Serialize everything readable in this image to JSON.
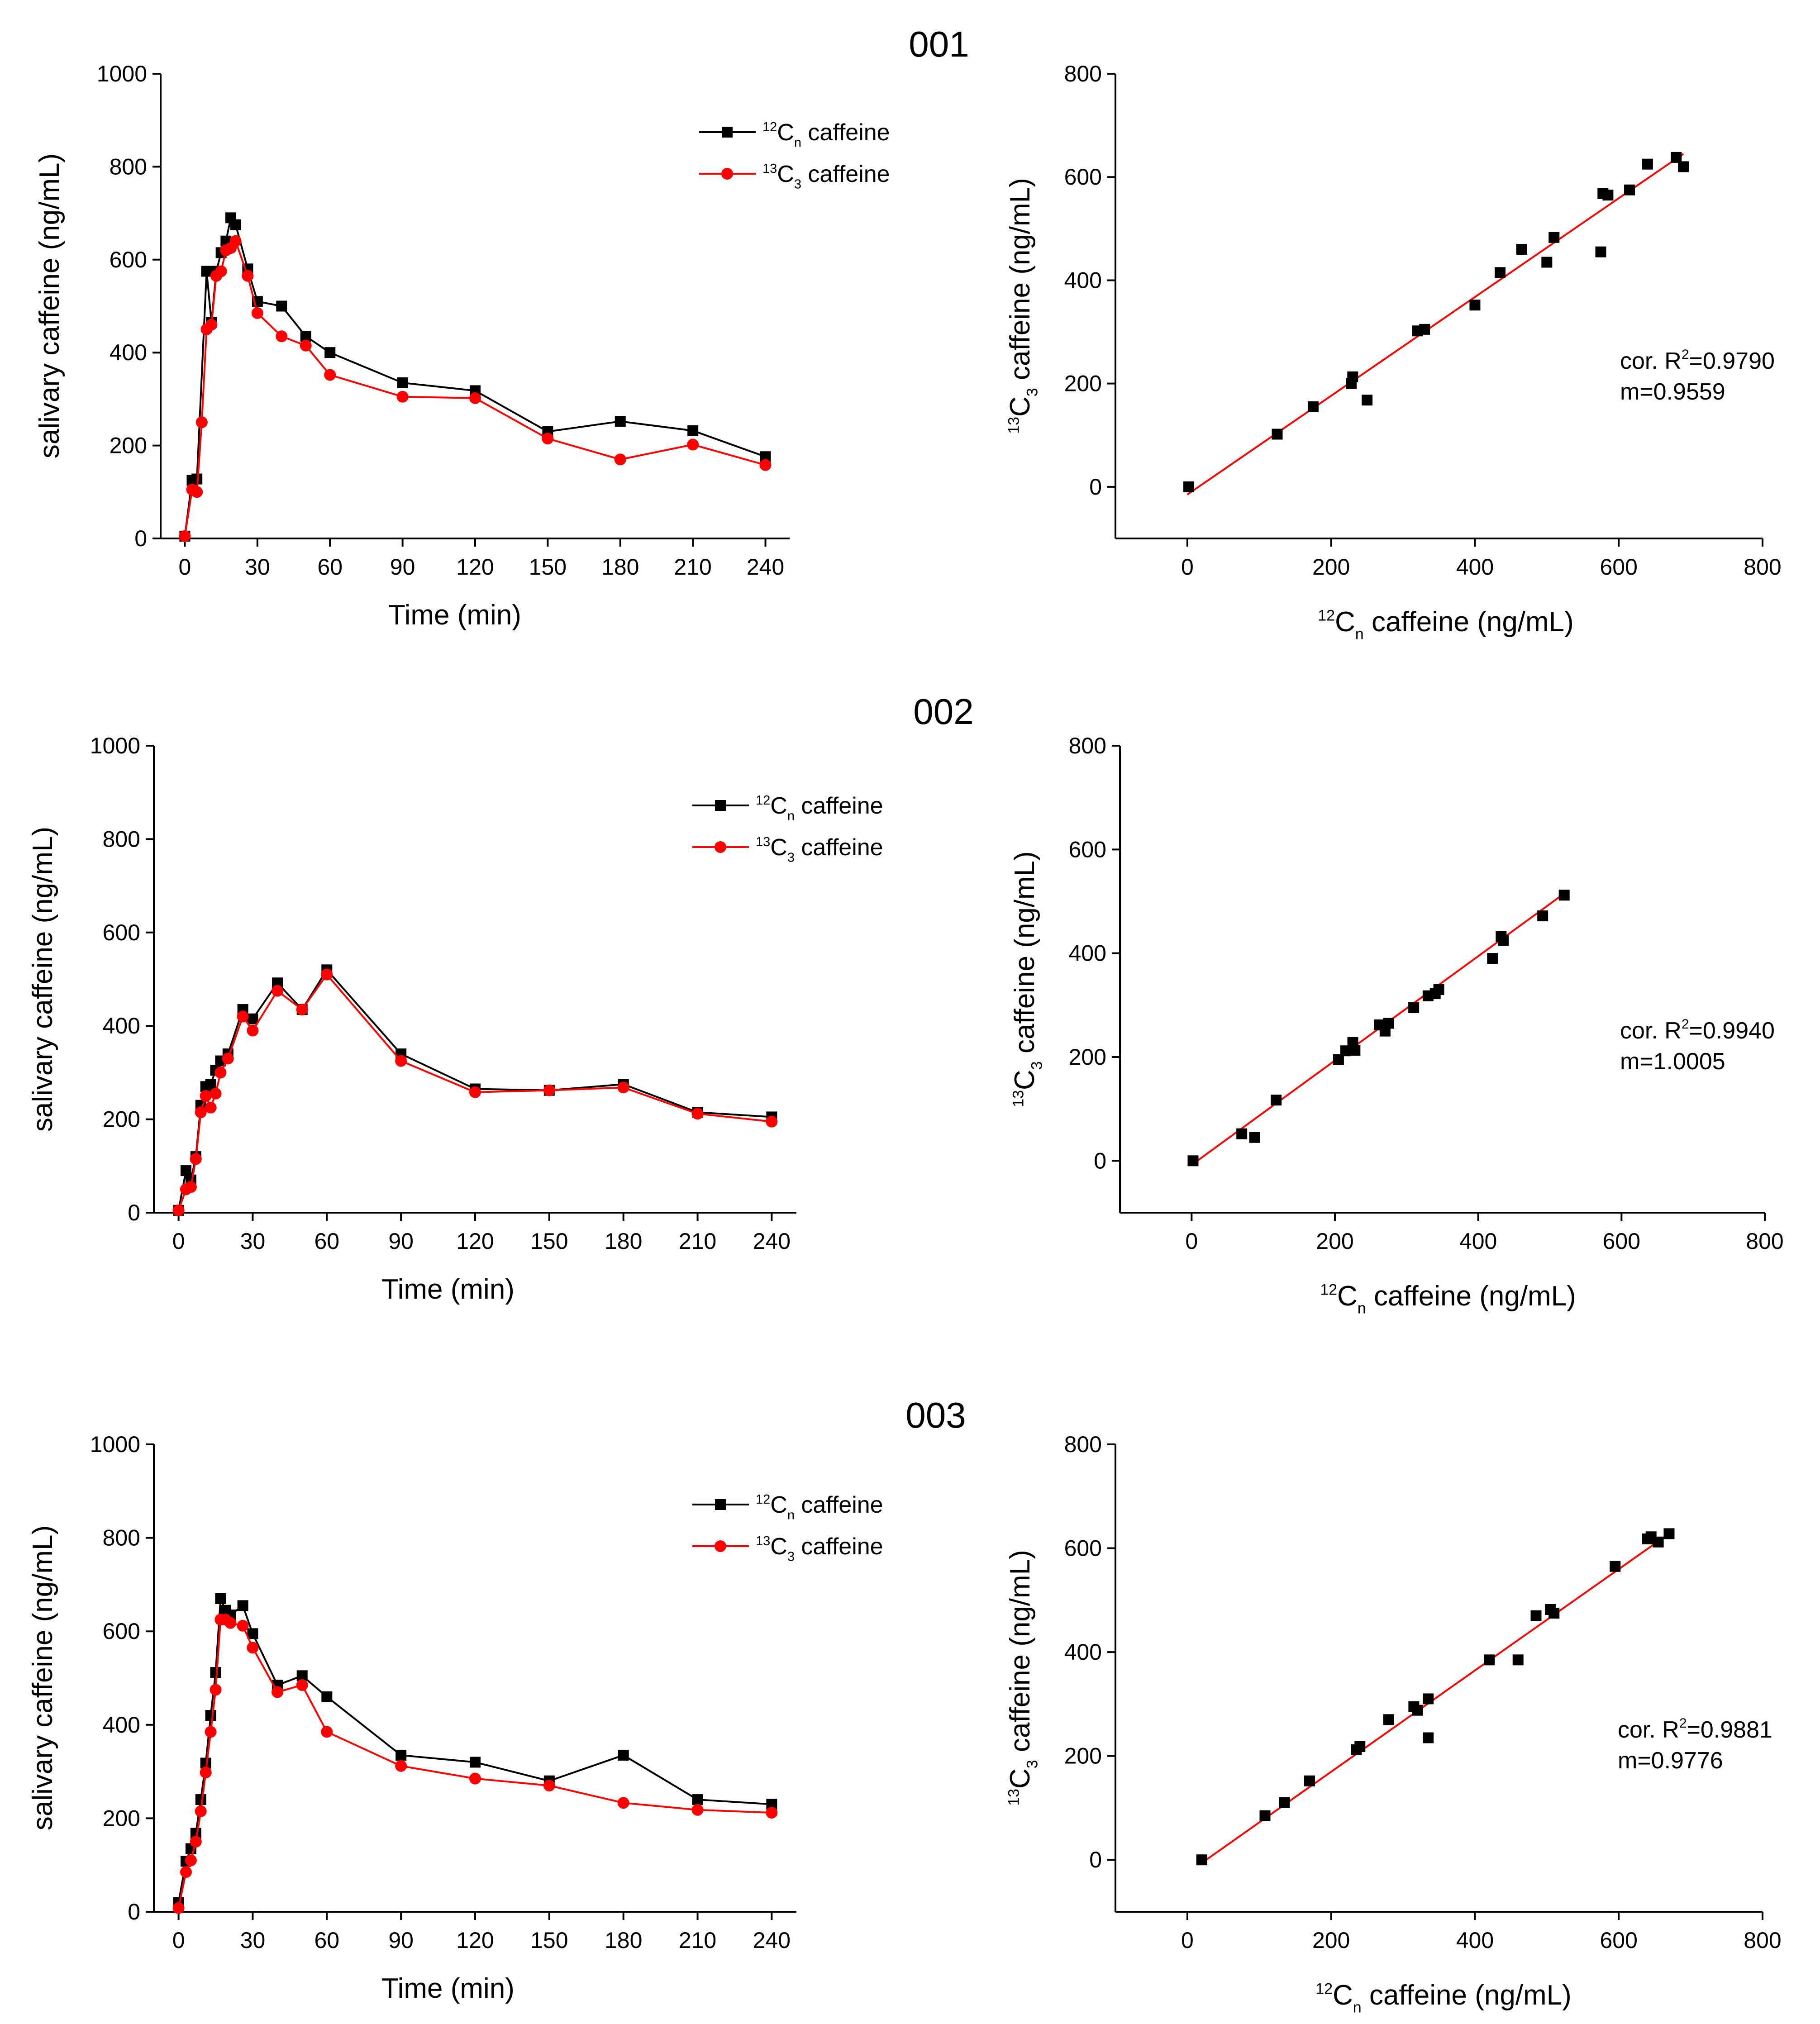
{
  "figure": {
    "panel_titles": [
      "001",
      "002",
      "003"
    ]
  },
  "legend": {
    "black_label": [
      "12",
      "C",
      "n",
      " caffeine"
    ],
    "red_label": [
      "13",
      "C",
      "3",
      " caffeine"
    ]
  },
  "colors": {
    "c12": "#000000",
    "c13": "#ff0000",
    "fit": "#ff0000"
  },
  "chart_data": [
    {
      "id": "001-time",
      "type": "line",
      "title": "001",
      "xlabel": "Time (min)",
      "ylabel": "salivary caffeine (ng/mL)",
      "xlim": [
        -10,
        250
      ],
      "ylim": [
        0,
        1000
      ],
      "xticks": [
        0,
        30,
        60,
        90,
        120,
        150,
        180,
        210,
        240
      ],
      "yticks": [
        0,
        200,
        400,
        600,
        800,
        1000
      ],
      "series": [
        {
          "name": "12Cn caffeine",
          "color": "#000000",
          "marker": "square",
          "x": [
            0,
            3,
            5,
            9,
            11,
            13,
            15,
            17,
            19,
            21,
            26,
            30,
            40,
            50,
            60,
            90,
            120,
            150,
            180,
            210,
            240
          ],
          "y": [
            5,
            125,
            128,
            575,
            465,
            575,
            615,
            640,
            690,
            675,
            580,
            510,
            500,
            435,
            400,
            335,
            318,
            230,
            252,
            232,
            176
          ]
        },
        {
          "name": "13C3 caffeine",
          "color": "#ff0000",
          "marker": "circle",
          "x": [
            0,
            3,
            5,
            7,
            9,
            11,
            13,
            15,
            17,
            19,
            21,
            26,
            30,
            40,
            50,
            60,
            90,
            120,
            150,
            180,
            210,
            240
          ],
          "y": [
            5,
            105,
            100,
            250,
            450,
            460,
            565,
            575,
            620,
            625,
            640,
            565,
            485,
            435,
            415,
            352,
            305,
            302,
            215,
            170,
            202,
            158
          ]
        }
      ]
    },
    {
      "id": "001-corr",
      "type": "scatter",
      "xlabel": [
        "12",
        "C",
        "n",
        " caffeine (ng/mL)"
      ],
      "ylabel": [
        "13",
        "C",
        "3",
        " caffeine (ng/mL)"
      ],
      "xlim": [
        -100,
        800
      ],
      "ylim": [
        -100,
        800
      ],
      "xticks": [
        0,
        200,
        400,
        600,
        800
      ],
      "yticks": [
        0,
        200,
        400,
        600,
        800
      ],
      "stats": {
        "r2_label": "cor. R",
        "r2_value": "=0.9790",
        "slope_label": "m=0.9559"
      },
      "fit": {
        "x": [
          0,
          690
        ],
        "y": [
          -15,
          645
        ]
      },
      "x": [
        2,
        125,
        175,
        228,
        230,
        250,
        320,
        330,
        400,
        435,
        465,
        500,
        510,
        575,
        578,
        585,
        615,
        640,
        680,
        690
      ],
      "y": [
        0,
        102,
        155,
        200,
        213,
        168,
        302,
        305,
        352,
        415,
        460,
        435,
        483,
        455,
        568,
        565,
        575,
        625,
        638,
        620
      ]
    },
    {
      "id": "002-time",
      "type": "line",
      "title": "002",
      "xlabel": "Time (min)",
      "ylabel": "salivary caffeine (ng/mL)",
      "xlim": [
        -10,
        250
      ],
      "ylim": [
        0,
        1000
      ],
      "xticks": [
        0,
        30,
        60,
        90,
        120,
        150,
        180,
        210,
        240
      ],
      "yticks": [
        0,
        200,
        400,
        600,
        800,
        1000
      ],
      "series": [
        {
          "name": "12Cn caffeine",
          "color": "#000000",
          "marker": "square",
          "x": [
            0,
            3,
            5,
            7,
            9,
            11,
            13,
            15,
            17,
            20,
            26,
            30,
            40,
            50,
            60,
            90,
            120,
            150,
            180,
            210,
            240
          ],
          "y": [
            5,
            90,
            70,
            120,
            230,
            270,
            275,
            305,
            325,
            340,
            435,
            415,
            492,
            435,
            520,
            340,
            265,
            262,
            275,
            215,
            205
          ]
        },
        {
          "name": "13C3 caffeine",
          "color": "#ff0000",
          "marker": "circle",
          "x": [
            0,
            3,
            5,
            7,
            9,
            11,
            13,
            15,
            17,
            20,
            26,
            30,
            40,
            50,
            60,
            90,
            120,
            150,
            180,
            210,
            240
          ],
          "y": [
            5,
            50,
            55,
            115,
            215,
            250,
            225,
            255,
            300,
            330,
            420,
            390,
            475,
            435,
            510,
            325,
            258,
            262,
            268,
            212,
            195
          ]
        }
      ]
    },
    {
      "id": "002-corr",
      "type": "scatter",
      "xlabel": [
        "12",
        "C",
        "n",
        " caffeine (ng/mL)"
      ],
      "ylabel": [
        "13",
        "C",
        "3",
        " caffeine (ng/mL)"
      ],
      "xlim": [
        -100,
        800
      ],
      "ylim": [
        -100,
        800
      ],
      "xticks": [
        0,
        200,
        400,
        600,
        800
      ],
      "yticks": [
        0,
        200,
        400,
        600,
        800
      ],
      "stats": {
        "r2_label": "cor. R",
        "r2_value": "=0.9940",
        "slope_label": "m=1.0005"
      },
      "fit": {
        "x": [
          0,
          520
        ],
        "y": [
          -8,
          515
        ]
      },
      "x": [
        2,
        70,
        88,
        118,
        205,
        215,
        225,
        228,
        262,
        270,
        275,
        310,
        330,
        340,
        345,
        420,
        432,
        435,
        490,
        520
      ],
      "y": [
        0,
        52,
        45,
        117,
        195,
        212,
        228,
        213,
        262,
        250,
        265,
        295,
        318,
        322,
        330,
        390,
        432,
        425,
        472,
        512
      ]
    },
    {
      "id": "003-time",
      "type": "line",
      "title": "003",
      "xlabel": "Time (min)",
      "ylabel": "salivary caffeine (ng/mL)",
      "xlim": [
        -10,
        250
      ],
      "ylim": [
        0,
        1000
      ],
      "xticks": [
        0,
        30,
        60,
        90,
        120,
        150,
        180,
        210,
        240
      ],
      "yticks": [
        0,
        200,
        400,
        600,
        800,
        1000
      ],
      "series": [
        {
          "name": "12Cn caffeine",
          "color": "#000000",
          "marker": "square",
          "x": [
            0,
            3,
            5,
            7,
            9,
            11,
            13,
            15,
            17,
            19,
            21,
            26,
            30,
            40,
            50,
            60,
            90,
            120,
            150,
            180,
            210,
            240
          ],
          "y": [
            20,
            108,
            135,
            168,
            240,
            318,
            420,
            512,
            670,
            645,
            635,
            655,
            595,
            485,
            505,
            460,
            335,
            320,
            280,
            335,
            240,
            230
          ]
        },
        {
          "name": "13C3 caffeine",
          "color": "#ff0000",
          "marker": "circle",
          "x": [
            0,
            3,
            5,
            7,
            9,
            11,
            13,
            15,
            17,
            19,
            21,
            26,
            30,
            40,
            50,
            60,
            90,
            120,
            150,
            180,
            210,
            240
          ],
          "y": [
            8,
            85,
            110,
            150,
            215,
            298,
            385,
            475,
            625,
            625,
            618,
            612,
            565,
            470,
            485,
            385,
            312,
            285,
            270,
            233,
            218,
            212
          ]
        }
      ]
    },
    {
      "id": "003-corr",
      "type": "scatter",
      "xlabel": [
        "12",
        "C",
        "n",
        " caffeine (ng/mL)"
      ],
      "ylabel": [
        "13",
        "C",
        "3",
        " caffeine (ng/mL)"
      ],
      "xlim": [
        -100,
        800
      ],
      "ylim": [
        -100,
        800
      ],
      "xticks": [
        0,
        200,
        400,
        600,
        800
      ],
      "yticks": [
        0,
        200,
        400,
        600,
        800
      ],
      "stats": {
        "r2_label": "cor. R",
        "r2_value": "=0.9881",
        "slope_label": "m=0.9776"
      },
      "fit": {
        "x": [
          18,
          670
        ],
        "y": [
          -8,
          628
        ]
      },
      "x": [
        20,
        108,
        135,
        170,
        235,
        240,
        280,
        315,
        320,
        335,
        335,
        420,
        460,
        485,
        505,
        510,
        595,
        640,
        645,
        655,
        670
      ],
      "y": [
        0,
        85,
        110,
        152,
        212,
        218,
        270,
        295,
        288,
        310,
        235,
        385,
        385,
        470,
        482,
        475,
        565,
        618,
        622,
        612,
        628
      ]
    }
  ]
}
